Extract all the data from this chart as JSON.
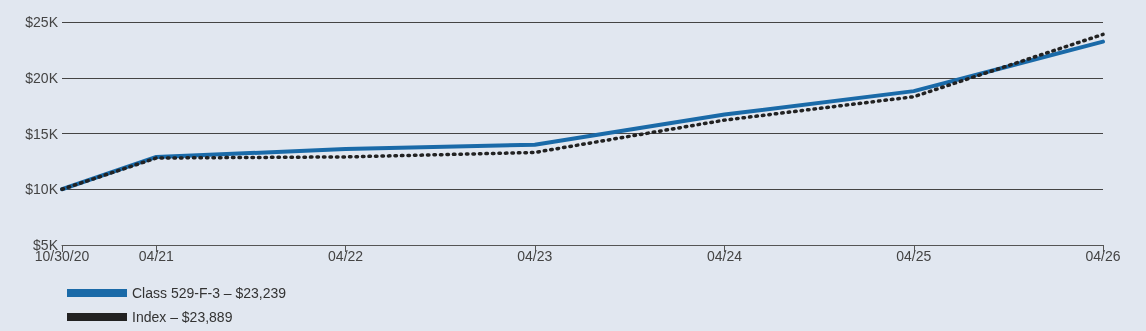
{
  "chart_data": {
    "type": "line",
    "x": [
      "2020-10-30",
      "2021-04-30",
      "2022-04-30",
      "2023-04-30",
      "2024-04-30",
      "2025-04-30",
      "2026-04-30"
    ],
    "series": [
      {
        "name": "Class 529-F-3 – $23,239",
        "color": "#1a6aa8",
        "line_style": "solid",
        "values": [
          10000,
          12900,
          13600,
          14000,
          16700,
          18800,
          23239
        ]
      },
      {
        "name": "Index – $23,889",
        "color": "#222222",
        "line_style": "dotted",
        "values": [
          10000,
          12800,
          12900,
          13300,
          16200,
          18300,
          23889
        ]
      }
    ],
    "xlim": [
      "2020-10-30",
      "2026-04-30"
    ],
    "xticks": [
      {
        "value": "2020-10-30",
        "label": "10/30/20"
      },
      {
        "value": "2021-04-30",
        "label": "04/21"
      },
      {
        "value": "2022-04-30",
        "label": "04/22"
      },
      {
        "value": "2023-04-30",
        "label": "04/23"
      },
      {
        "value": "2024-04-30",
        "label": "04/24"
      },
      {
        "value": "2025-04-30",
        "label": "04/25"
      },
      {
        "value": "2026-04-30",
        "label": "04/26"
      }
    ],
    "ylim": [
      5000,
      25000
    ],
    "yticks": [
      {
        "value": 5000,
        "label": "$5K"
      },
      {
        "value": 10000,
        "label": "$10K"
      },
      {
        "value": 15000,
        "label": "$15K"
      },
      {
        "value": 20000,
        "label": "$20K"
      },
      {
        "value": 25000,
        "label": "$25K"
      }
    ],
    "grid": "y",
    "legend": "bottom left",
    "marker": "none"
  }
}
